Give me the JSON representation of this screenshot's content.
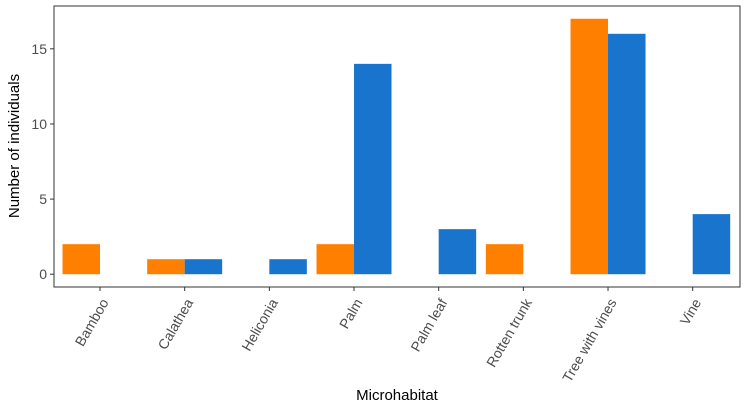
{
  "chart_data": {
    "type": "bar",
    "title": "",
    "xlabel": "Microhabitat",
    "ylabel": "Number of individuals",
    "categories": [
      "Bamboo",
      "Calathea",
      "Heliconia",
      "Palm",
      "Palm leaf",
      "Rotten trunk",
      "Tree with vines",
      "Vine"
    ],
    "series": [
      {
        "color": "#ff7f00",
        "values": [
          2,
          1,
          0,
          2,
          0,
          2,
          17,
          0
        ]
      },
      {
        "color": "#1874cd",
        "values": [
          0,
          1,
          1,
          14,
          3,
          0,
          16,
          4
        ]
      }
    ],
    "ylim": [
      -0.85,
      17.85
    ],
    "yticks": [
      0,
      5,
      10,
      15
    ],
    "grid": false,
    "legend": "none"
  }
}
